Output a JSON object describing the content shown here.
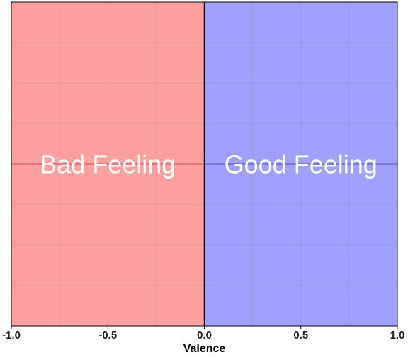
{
  "chart_data": {
    "type": "area",
    "title": "",
    "xlabel": "Valence",
    "ylabel": "",
    "xlim": [
      -1.0,
      1.0
    ],
    "ylim": [
      -1.0,
      1.0
    ],
    "x_ticks": [
      -1.0,
      -0.5,
      0.0,
      0.5,
      1.0
    ],
    "x_tick_labels": [
      "-1.0",
      "-0.5",
      "0.0",
      "0.5",
      "1.0"
    ],
    "grid": true,
    "regions": [
      {
        "label": "Bad Feeling",
        "x_range": [
          -1.0,
          0.0
        ],
        "color": "#ffa0a0",
        "midline_color": "#8b0000"
      },
      {
        "label": "Good Feeling",
        "x_range": [
          0.0,
          1.0
        ],
        "color": "#a0a0ff",
        "midline_color": "#00008b"
      }
    ]
  }
}
